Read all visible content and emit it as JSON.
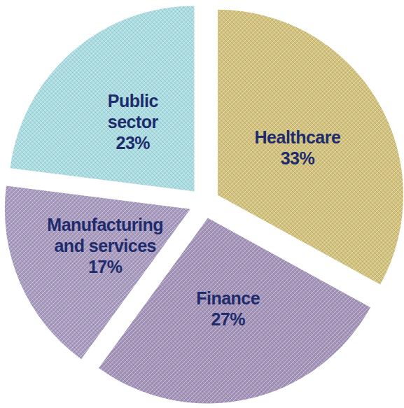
{
  "chart_data": {
    "type": "pie",
    "categories": [
      "Healthcare",
      "Finance",
      "Manufacturing and services",
      "Public sector"
    ],
    "values": [
      33,
      27,
      17,
      23
    ],
    "value_labels": [
      "33%",
      "27%",
      "17%",
      "23%"
    ],
    "colors": [
      "#d2c27c",
      "#a594ba",
      "#a99bbf",
      "#a9dde2"
    ],
    "data_labels": true
  }
}
